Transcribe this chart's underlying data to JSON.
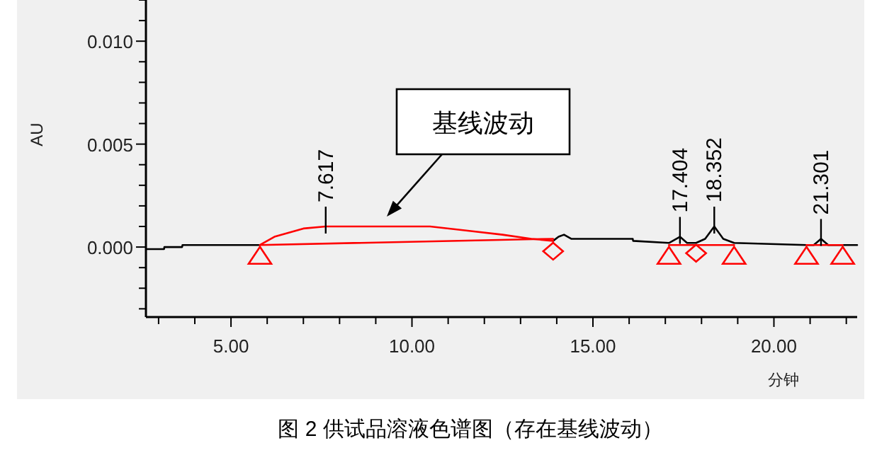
{
  "chart_data": {
    "type": "line",
    "title": "图 2 供试品溶液色谱图（存在基线波动）",
    "xlabel": "分钟",
    "ylabel": "AU",
    "xlim": [
      2.65,
      22.3
    ],
    "ylim": [
      -0.0034,
      0.012
    ],
    "xticks": [
      {
        "value": 3,
        "label": null
      },
      {
        "value": 4,
        "label": null
      },
      {
        "value": 5,
        "label": "5.00"
      },
      {
        "value": 6,
        "label": null
      },
      {
        "value": 7,
        "label": null
      },
      {
        "value": 8,
        "label": null
      },
      {
        "value": 9,
        "label": null
      },
      {
        "value": 10,
        "label": "10.00"
      },
      {
        "value": 11,
        "label": null
      },
      {
        "value": 12,
        "label": null
      },
      {
        "value": 13,
        "label": null
      },
      {
        "value": 14,
        "label": null
      },
      {
        "value": 15,
        "label": "15.00"
      },
      {
        "value": 16,
        "label": null
      },
      {
        "value": 17,
        "label": null
      },
      {
        "value": 18,
        "label": null
      },
      {
        "value": 19,
        "label": null
      },
      {
        "value": 20,
        "label": "20.00"
      },
      {
        "value": 21,
        "label": null
      },
      {
        "value": 22,
        "label": null
      }
    ],
    "yticks": [
      {
        "value": -0.003,
        "label": null
      },
      {
        "value": -0.002,
        "label": null
      },
      {
        "value": -0.001,
        "label": null
      },
      {
        "value": 0,
        "label": "0.000"
      },
      {
        "value": 0.001,
        "label": null
      },
      {
        "value": 0.002,
        "label": null
      },
      {
        "value": 0.003,
        "label": null
      },
      {
        "value": 0.004,
        "label": null
      },
      {
        "value": 0.005,
        "label": "0.005"
      },
      {
        "value": 0.006,
        "label": null
      },
      {
        "value": 0.007,
        "label": null
      },
      {
        "value": 0.008,
        "label": null
      },
      {
        "value": 0.009,
        "label": null
      },
      {
        "value": 0.01,
        "label": "0.010"
      },
      {
        "value": 0.011,
        "label": null
      },
      {
        "value": 0.012,
        "label": null
      }
    ],
    "series": [
      {
        "color": "#000000",
        "x": [
          2.65,
          3.15,
          3.16,
          3.65,
          3.66,
          5.8,
          9,
          13.9,
          14.05,
          14.2,
          14.4,
          16.1,
          16.11,
          17.1,
          17.404,
          17.6,
          17.85,
          18.1,
          18.352,
          18.6,
          18.9,
          20.9,
          21.1,
          21.301,
          21.5,
          21.9,
          22.3
        ],
        "values": [
          -0.0001,
          -0.0001,
          0,
          0,
          0.0001,
          0.0001,
          null,
          0.0003,
          0.0005,
          0.0006,
          0.0004,
          0.0004,
          0.0003,
          0.0002,
          0.0005,
          0.0002,
          0.0002,
          0.0004,
          0.001,
          0.0004,
          0.0002,
          0.0001,
          0.0001,
          0.0004,
          0.0001,
          0.0001,
          0.0001
        ]
      },
      {
        "color": "#ff0000",
        "x": [
          5.8,
          6.2,
          6.6,
          7.0,
          7.617,
          8.5,
          9.5,
          10.5,
          11.5,
          12.5,
          13.3,
          13.9
        ],
        "values": [
          0.0001,
          0.0005,
          0.0007,
          0.0009,
          0.001,
          0.001,
          0.001,
          0.001,
          0.0008,
          0.0006,
          0.0004,
          0.0003
        ]
      },
      {
        "color": "#ff0000",
        "x": [
          5.8,
          13.9
        ],
        "values": [
          0.0001,
          0.0004
        ]
      },
      {
        "color": "#ff0000",
        "x": [
          17.1,
          18.9
        ],
        "values": [
          0.0001,
          0.0001
        ]
      },
      {
        "color": "#ff0000",
        "x": [
          20.9,
          21.9
        ],
        "values": [
          0.0001,
          0.0001
        ]
      },
      {
        "type": "scatter",
        "marker": "triangle",
        "color": "#ff0000",
        "x": [
          5.8,
          17.1,
          18.9,
          20.9,
          21.9
        ],
        "values": [
          -0.0004,
          -0.0004,
          -0.0004,
          -0.0004,
          -0.0004
        ]
      },
      {
        "type": "scatter",
        "marker": "diamond",
        "color": "#ff0000",
        "x": [
          13.9,
          17.85
        ],
        "values": [
          -0.0002,
          -0.0003
        ]
      }
    ],
    "annotations": [
      {
        "text": "7.617",
        "x": 7.617,
        "y": 0.001
      },
      {
        "text": "17.404",
        "x": 17.404,
        "y": 0.0005
      },
      {
        "text": "18.352",
        "x": 18.352,
        "y": 0.001
      },
      {
        "text": "21.301",
        "x": 21.301,
        "y": 0.0004
      },
      "基线波动"
    ]
  }
}
